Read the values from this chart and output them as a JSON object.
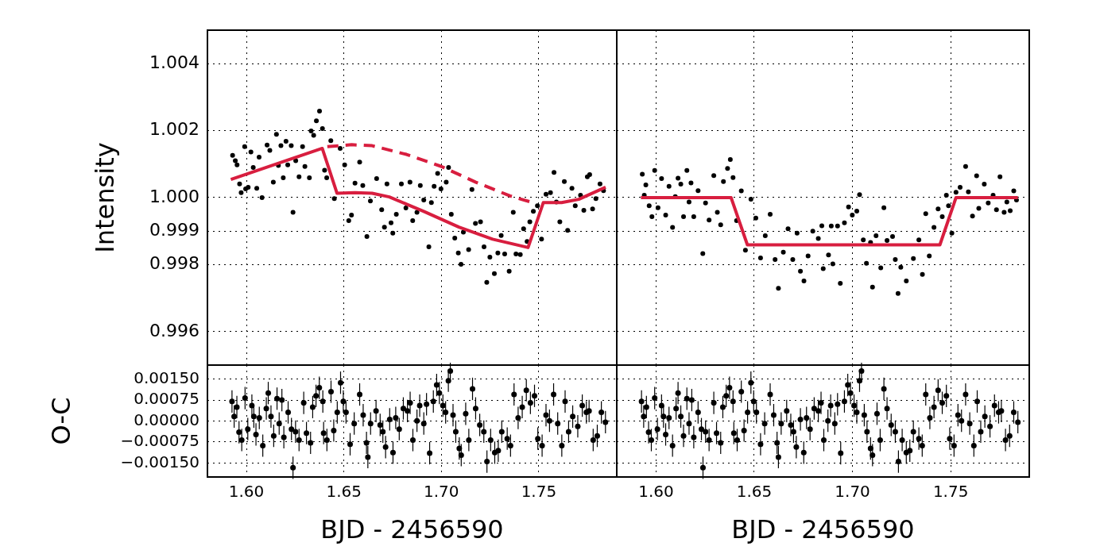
{
  "chart_data": [
    {
      "type": "scatter",
      "ylabel": "Intensity",
      "grid": true,
      "tick_labels": "y",
      "xlim": [
        1.58,
        1.79
      ],
      "xticks": [
        1.6,
        1.65,
        1.7,
        1.75
      ],
      "ylim": [
        0.995,
        1.005
      ],
      "yticks": [
        {
          "value": 0.996,
          "label": "0.996"
        },
        {
          "value": 0.998,
          "label": "0.998"
        },
        {
          "value": 0.999,
          "label": "0.999"
        },
        {
          "value": 1.0,
          "label": "1.000"
        },
        {
          "value": 1.002,
          "label": "1.002"
        },
        {
          "value": 1.004,
          "label": "1.004"
        }
      ],
      "series": [
        {
          "type": "scatter",
          "color": "#000000",
          "marker": "circle",
          "x": [
            1.5929,
            1.5943,
            1.5952,
            1.5965,
            1.5973,
            1.5991,
            1.5996,
            1.6009,
            1.6023,
            1.6035,
            1.6053,
            1.6065,
            1.608,
            1.6106,
            1.612,
            1.6138,
            1.6154,
            1.6164,
            1.6177,
            1.6189,
            1.6203,
            1.6212,
            1.623,
            1.6239,
            1.6253,
            1.627,
            1.6288,
            1.63,
            1.6323,
            1.6332,
            1.6345,
            1.6359,
            1.6375,
            1.639,
            1.6401,
            1.6412,
            1.6433,
            1.6451,
            1.6481,
            1.6504,
            1.6525,
            1.6539,
            1.6557,
            1.6581,
            1.6597,
            1.6618,
            1.6636,
            1.6668,
            1.6694,
            1.6708,
            1.6721,
            1.6742,
            1.6751,
            1.6769,
            1.6795,
            1.6818,
            1.6839,
            1.6853,
            1.6875,
            1.6892,
            1.691,
            1.6936,
            1.6949,
            1.6963,
            1.6981,
            1.6998,
            1.7025,
            1.7037,
            1.7051,
            1.7069,
            1.7087,
            1.7101,
            1.7113,
            1.714,
            1.7157,
            1.7175,
            1.7201,
            1.7219,
            1.7233,
            1.7249,
            1.7272,
            1.729,
            1.7307,
            1.7325,
            1.7348,
            1.7369,
            1.7383,
            1.7405,
            1.7422,
            1.744,
            1.7454,
            1.7472,
            1.7493,
            1.7514,
            1.7537,
            1.756,
            1.7578,
            1.759,
            1.7608,
            1.7631,
            1.7648,
            1.767,
            1.7687,
            1.7714,
            1.7731,
            1.7749,
            1.7761,
            1.7776,
            1.7793,
            1.7814,
            1.7832
          ],
          "values": [
            1.00126,
            1.0011,
            1.00098,
            1.00041,
            1.00015,
            1.00152,
            1.00026,
            1.00031,
            1.00136,
            1.0009,
            1.00028,
            1.00121,
            1.0,
            1.00157,
            1.00141,
            1.00046,
            1.00189,
            1.00096,
            1.00155,
            1.00059,
            1.00168,
            1.00098,
            1.00155,
            0.99956,
            1.0011,
            1.00062,
            1.00152,
            1.00093,
            1.00059,
            1.00199,
            1.00186,
            1.00229,
            1.00258,
            1.00206,
            1.00082,
            1.00059,
            1.0017,
            0.99997,
            1.00147,
            1.00098,
            0.99931,
            0.99948,
            1.00043,
            1.00106,
            1.00036,
            0.99884,
            0.9999,
            1.00057,
            0.99964,
            0.99912,
            1.00041,
            0.99925,
            0.99894,
            0.9995,
            1.00041,
            0.99969,
            1.00046,
            0.99931,
            0.99956,
            1.00036,
            0.99993,
            0.99853,
            0.99985,
            1.00034,
            1.00072,
            1.00026,
            1.00046,
            1.0009,
            0.9995,
            0.99879,
            0.99835,
            0.99801,
            0.99897,
            0.99845,
            1.00024,
            0.99923,
            0.99928,
            0.99853,
            0.99747,
            0.99822,
            0.99773,
            0.99835,
            0.99887,
            0.99832,
            0.9978,
            0.99956,
            0.99832,
            0.9983,
            0.99907,
            0.99869,
            0.99928,
            0.99959,
            0.99976,
            0.99876,
            1.0001,
            1.00015,
            1.00075,
            0.99987,
            0.99928,
            1.00048,
            0.99902,
            1.00028,
            0.99976,
            1.00007,
            0.99962,
            1.00062,
            1.00069,
            0.99966,
            0.99997,
            1.00041,
            1.00021
          ]
        },
        {
          "type": "line",
          "color": "#d81e3f",
          "marker": "none",
          "line_style": "solid",
          "x": [
            1.592,
            1.6389,
            1.6465,
            1.6557,
            1.6645,
            1.6733,
            1.691,
            1.709,
            1.7263,
            1.7445,
            1.7523,
            1.7617,
            1.7705,
            1.7843
          ],
          "values": [
            1.00054,
            1.00147,
            1.00013,
            1.00015,
            1.00013,
            1.00002,
            0.99959,
            0.99912,
            0.99876,
            0.99851,
            0.99985,
            0.99985,
            0.99995,
            1.00031
          ]
        },
        {
          "type": "line",
          "color": "#d81e3f",
          "marker": "none",
          "line_style": "dashed",
          "x": [
            1.6415,
            1.654,
            1.6645,
            1.6821,
            1.7,
            1.7177,
            1.7353,
            1.7459
          ],
          "values": [
            1.00152,
            1.00158,
            1.00155,
            1.00129,
            1.00093,
            1.00046,
            1.00005,
            0.99987
          ]
        }
      ]
    },
    {
      "type": "scatter",
      "grid": true,
      "tick_labels": false,
      "xlim": [
        1.58,
        1.79
      ],
      "xticks": [
        1.6,
        1.65,
        1.7,
        1.75
      ],
      "ylim": [
        0.995,
        1.005
      ],
      "yticks": [
        0.996,
        0.998,
        0.999,
        1.0,
        1.002,
        1.004
      ],
      "series": [
        {
          "type": "scatter",
          "color": "#000000",
          "marker": "circle",
          "x": [
            1.593,
            1.594,
            1.5948,
            1.5965,
            1.5979,
            1.5993,
            1.601,
            1.6028,
            1.6049,
            1.6066,
            1.6084,
            1.6098,
            1.6112,
            1.6126,
            1.614,
            1.6157,
            1.6168,
            1.6178,
            1.6192,
            1.6214,
            1.6238,
            1.6252,
            1.627,
            1.6294,
            1.6312,
            1.6329,
            1.6343,
            1.6364,
            1.6378,
            1.6392,
            1.641,
            1.6434,
            1.6455,
            1.6483,
            1.6508,
            1.6532,
            1.6556,
            1.6581,
            1.6606,
            1.6623,
            1.6648,
            1.6672,
            1.6696,
            1.6718,
            1.6735,
            1.6753,
            1.6774,
            1.6798,
            1.6826,
            1.6844,
            1.6851,
            1.6878,
            1.6892,
            1.69,
            1.6924,
            1.6938,
            1.6959,
            1.698,
            1.6999,
            1.7022,
            1.7036,
            1.7055,
            1.7071,
            1.7092,
            1.7102,
            1.712,
            1.7144,
            1.716,
            1.7176,
            1.7204,
            1.7218,
            1.7232,
            1.7246,
            1.7274,
            1.731,
            1.7338,
            1.7356,
            1.7373,
            1.7391,
            1.7415,
            1.7436,
            1.7457,
            1.7478,
            1.7489,
            1.7506,
            1.7527,
            1.7548,
            1.7576,
            1.759,
            1.7611,
            1.7632,
            1.7643,
            1.7671,
            1.7691,
            1.7716,
            1.7733,
            1.7751,
            1.7772,
            1.7786,
            1.7803,
            1.7821,
            1.7835
          ],
          "values": [
            1.0007,
            1.00007,
            1.00038,
            0.99976,
            0.99943,
            1.00081,
            0.9997,
            1.00057,
            0.99948,
            1.00034,
            0.99911,
            1.00003,
            1.00058,
            1.0004,
            0.99943,
            1.00081,
            0.99987,
            1.00044,
            0.99943,
            1.00021,
            0.99833,
            0.99984,
            0.99933,
            1.00066,
            0.99956,
            0.99919,
            1.00048,
            1.00087,
            1.00114,
            1.0006,
            0.99931,
            1.0002,
            0.99843,
            0.99995,
            0.99939,
            0.9982,
            0.99886,
            0.9995,
            0.99815,
            0.99729,
            0.99837,
            0.99907,
            0.99815,
            0.99894,
            0.9978,
            0.99751,
            0.99826,
            0.999,
            0.99878,
            0.99916,
            0.99788,
            0.99829,
            0.99915,
            0.99802,
            0.99915,
            0.99744,
            0.99925,
            0.99972,
            0.99948,
            0.9996,
            1.00009,
            0.99874,
            0.99804,
            0.99866,
            0.99733,
            0.99886,
            0.9979,
            0.9997,
            0.99872,
            0.99884,
            0.99815,
            0.99714,
            0.99792,
            0.99751,
            0.99818,
            0.99874,
            0.99771,
            0.99952,
            0.99826,
            0.99911,
            0.99966,
            0.99943,
            1.00007,
            0.99976,
            0.99894,
            1.00016,
            1.00031,
            1.00093,
            1.00017,
            0.99945,
            1.00065,
            0.99968,
            1.0004,
            0.99984,
            1.00007,
            0.99964,
            1.00062,
            0.99956,
            0.99987,
            0.99961,
            1.0002,
            0.99993
          ]
        },
        {
          "type": "line",
          "color": "#d81e3f",
          "marker": "none",
          "line_style": "solid",
          "x": [
            1.5923,
            1.6382,
            1.6465,
            1.7445,
            1.7527,
            1.7842
          ],
          "values": [
            1.0,
            1.0,
            0.99859,
            0.99859,
            1.0,
            1.0
          ]
        }
      ]
    },
    {
      "type": "scatter",
      "xlabel": "BJD - 2456590",
      "ylabel": "O-C",
      "grid": true,
      "xlim": [
        1.58,
        1.79
      ],
      "xticks": [
        {
          "value": 1.6,
          "label": "1.60"
        },
        {
          "value": 1.65,
          "label": "1.65"
        },
        {
          "value": 1.7,
          "label": "1.70"
        },
        {
          "value": 1.75,
          "label": "1.75"
        }
      ],
      "ylim": [
        -0.002,
        0.002
      ],
      "yticks": [
        {
          "value": -0.0015,
          "label": "−0.00150"
        },
        {
          "value": -0.00075,
          "label": "−0.00075"
        },
        {
          "value": 0,
          "label": "0.00000"
        },
        {
          "value": 0.00075,
          "label": "0.00075"
        },
        {
          "value": 0.0015,
          "label": "0.00150"
        }
      ],
      "series": [
        {
          "type": "scatter",
          "color": "#000000",
          "marker": "circle",
          "x": [
            1.5926,
            1.5937,
            1.5951,
            1.5962,
            1.5976,
            1.5993,
            1.6007,
            1.6028,
            1.6038,
            1.6049,
            1.6066,
            1.6084,
            1.6102,
            1.6112,
            1.6126,
            1.614,
            1.6157,
            1.6168,
            1.6182,
            1.6192,
            1.6214,
            1.6231,
            1.6239,
            1.6252,
            1.627,
            1.6294,
            1.6308,
            1.6329,
            1.634,
            1.6357,
            1.6374,
            1.6392,
            1.6396,
            1.6413,
            1.6434,
            1.6448,
            1.6466,
            1.6483,
            1.6497,
            1.6511,
            1.6532,
            1.6553,
            1.6581,
            1.6599,
            1.6616,
            1.6623,
            1.6637,
            1.6665,
            1.6686,
            1.67,
            1.6714,
            1.6735,
            1.6752,
            1.6766,
            1.6784,
            1.6805,
            1.6826,
            1.684,
            1.6854,
            1.6875,
            1.6889,
            1.691,
            1.6924,
            1.694,
            1.6959,
            1.6976,
            1.699,
            1.7008,
            1.7022,
            1.7036,
            1.7046,
            1.706,
            1.7074,
            1.7092,
            1.7102,
            1.7125,
            1.7141,
            1.716,
            1.7176,
            1.7197,
            1.7218,
            1.7234,
            1.7253,
            1.7274,
            1.7292,
            1.731,
            1.7338,
            1.7355,
            1.7373,
            1.7394,
            1.7415,
            1.7436,
            1.7457,
            1.7478,
            1.7495,
            1.7517,
            1.7537,
            1.7555,
            1.7576,
            1.7597,
            1.7618,
            1.7635,
            1.7653,
            1.7674,
            1.77,
            1.7723,
            1.7744,
            1.7758,
            1.7779,
            1.78,
            1.7821,
            1.7842
          ],
          "values": [
            0.0007,
            0.00016,
            0.0005,
            -0.0004,
            -0.00068,
            0.00082,
            -0.00029,
            0.00055,
            0.00016,
            -0.00048,
            0.00011,
            -0.00088,
            0.00045,
            0.001,
            0.00016,
            -0.00053,
            0.0008,
            -9e-05,
            0.00075,
            -0.00058,
            0.00031,
            -0.00029,
            -0.00167,
            -0.00038,
            -0.00068,
            0.00065,
            -0.00043,
            -0.00078,
            0.0005,
            0.0009,
            0.00119,
            0.0007,
            -0.00043,
            -0.00068,
            0.00105,
            -0.00034,
            0.00031,
            0.00137,
            0.0007,
            0.00031,
            -0.00083,
            -9e-05,
            0.00095,
            0.00021,
            -0.00078,
            -0.00129,
            -9e-05,
            0.00036,
            -0.00014,
            -0.00038,
            -0.00093,
            6e-05,
            -0.00113,
            0.00011,
            -0.00029,
            0.00045,
            0.00036,
            0.00065,
            -0.00068,
            1e-05,
            0.00055,
            -9e-05,
            0.0006,
            -0.00115,
            0.0007,
            0.00129,
            0.001,
            0.00055,
            0.00031,
            0.00144,
            0.00179,
            0.00021,
            -0.00038,
            -0.00098,
            -0.00122,
            0.00026,
            -0.00068,
            0.00115,
            0.00045,
            -0.00014,
            -0.00038,
            -0.00145,
            -0.00068,
            -0.00113,
            -0.00106,
            -0.00038,
            -0.00063,
            -0.00088,
            0.00095,
            0.00011,
            0.0005,
            0.0011,
            0.00065,
            0.0009,
            -0.00063,
            -0.00088,
            0.00021,
            1e-05,
            0.00095,
            -9e-05,
            -0.00088,
            0.0007,
            -0.00038,
            0.00016,
            -0.00019,
            0.00055,
            0.00031,
            0.00036,
            -0.00068,
            -0.00053,
            0.00031,
            -4e-05
          ],
          "errors": [
            0.0004,
            0.0004,
            0.0004,
            0.0004,
            0.0004,
            0.0004,
            0.0004,
            0.0004,
            0.0004,
            0.0004,
            0.0004,
            0.0004,
            0.0004,
            0.0004,
            0.0004,
            0.0004,
            0.0004,
            0.0004,
            0.0004,
            0.0004,
            0.0004,
            0.0004,
            0.0004,
            0.0004,
            0.0004,
            0.0004,
            0.0004,
            0.0004,
            0.0004,
            0.0004,
            0.0004,
            0.0004,
            0.0004,
            0.0004,
            0.0004,
            0.0004,
            0.0004,
            0.0004,
            0.0004,
            0.0004,
            0.0004,
            0.0004,
            0.0004,
            0.0004,
            0.0004,
            0.0004,
            0.0004,
            0.0004,
            0.0004,
            0.0004,
            0.0004,
            0.0004,
            0.0004,
            0.0004,
            0.0004,
            0.0004,
            0.0004,
            0.0004,
            0.0004,
            0.0004,
            0.0004,
            0.0004,
            0.0004,
            0.0004,
            0.0004,
            0.0004,
            0.0004,
            0.0004,
            0.0004,
            0.0004,
            0.0004,
            0.0004,
            0.0004,
            0.0004,
            0.0004,
            0.0004,
            0.0004,
            0.0004,
            0.0004,
            0.0004,
            0.0004,
            0.0004,
            0.0004,
            0.0004,
            0.0004,
            0.0004,
            0.0004,
            0.0004,
            0.0004,
            0.0004,
            0.0004,
            0.0004,
            0.0004,
            0.0004,
            0.0004,
            0.0004,
            0.0004,
            0.0004,
            0.0004,
            0.0004,
            0.0004,
            0.0004,
            0.0004,
            0.0004,
            0.0004,
            0.0004,
            0.0004,
            0.0004,
            0.0004,
            0.0004,
            0.0004,
            0.0004
          ]
        }
      ]
    },
    {
      "type": "scatter",
      "xlabel": "BJD - 2456590",
      "grid": true,
      "tick_labels": "x",
      "xlim": [
        1.58,
        1.79
      ],
      "xticks": [
        {
          "value": 1.6,
          "label": "1.60"
        },
        {
          "value": 1.65,
          "label": "1.65"
        },
        {
          "value": 1.7,
          "label": "1.70"
        },
        {
          "value": 1.75,
          "label": "1.75"
        }
      ],
      "ylim": [
        -0.002,
        0.002
      ],
      "yticks": [
        -0.0015,
        -0.00075,
        0,
        0.00075,
        0.0015
      ],
      "series": [
        {
          "type": "scatter",
          "color": "#000000",
          "marker": "circle",
          "x": [
            1.5926,
            1.5937,
            1.5951,
            1.5962,
            1.5976,
            1.5993,
            1.6007,
            1.6028,
            1.6038,
            1.6049,
            1.6066,
            1.6084,
            1.6102,
            1.6112,
            1.6126,
            1.614,
            1.6157,
            1.6168,
            1.6182,
            1.6192,
            1.6214,
            1.6231,
            1.6239,
            1.6252,
            1.627,
            1.6294,
            1.6308,
            1.6329,
            1.634,
            1.6357,
            1.6374,
            1.6392,
            1.6396,
            1.6413,
            1.6434,
            1.6448,
            1.6466,
            1.6483,
            1.6497,
            1.6511,
            1.6532,
            1.6553,
            1.6581,
            1.6599,
            1.6616,
            1.6623,
            1.6637,
            1.6665,
            1.6686,
            1.67,
            1.6714,
            1.6735,
            1.6752,
            1.6766,
            1.6784,
            1.6805,
            1.6826,
            1.684,
            1.6854,
            1.6875,
            1.6889,
            1.691,
            1.6924,
            1.694,
            1.6959,
            1.6976,
            1.699,
            1.7008,
            1.7022,
            1.7036,
            1.7046,
            1.706,
            1.7074,
            1.7092,
            1.7102,
            1.7125,
            1.7141,
            1.716,
            1.7176,
            1.7197,
            1.7218,
            1.7234,
            1.7253,
            1.7274,
            1.7292,
            1.731,
            1.7338,
            1.7355,
            1.7373,
            1.7394,
            1.7415,
            1.7436,
            1.7457,
            1.7478,
            1.7495,
            1.7517,
            1.7537,
            1.7555,
            1.7576,
            1.7597,
            1.7618,
            1.7635,
            1.7653,
            1.7674,
            1.77,
            1.7723,
            1.7744,
            1.7758,
            1.7779,
            1.78,
            1.7821,
            1.7842
          ],
          "values": [
            0.0007,
            0.00016,
            0.0005,
            -0.0004,
            -0.00068,
            0.00082,
            -0.00029,
            0.00055,
            0.00016,
            -0.00048,
            0.00011,
            -0.00088,
            0.00045,
            0.001,
            0.00016,
            -0.00053,
            0.0008,
            -9e-05,
            0.00075,
            -0.00058,
            0.00031,
            -0.00029,
            -0.00167,
            -0.00038,
            -0.00068,
            0.00065,
            -0.00043,
            -0.00078,
            0.0005,
            0.0009,
            0.00119,
            0.0007,
            -0.00043,
            -0.00068,
            0.00105,
            -0.00034,
            0.00031,
            0.00137,
            0.0007,
            0.00031,
            -0.00083,
            -9e-05,
            0.00095,
            0.00021,
            -0.00078,
            -0.00129,
            -9e-05,
            0.00036,
            -0.00014,
            -0.00038,
            -0.00093,
            6e-05,
            -0.00113,
            0.00011,
            -0.00029,
            0.00045,
            0.00036,
            0.00065,
            -0.00068,
            1e-05,
            0.00055,
            -9e-05,
            0.0006,
            -0.00115,
            0.0007,
            0.00129,
            0.001,
            0.00055,
            0.00031,
            0.00144,
            0.00179,
            0.00021,
            -0.00038,
            -0.00098,
            -0.00122,
            0.00026,
            -0.00068,
            0.00115,
            0.00045,
            -0.00014,
            -0.00038,
            -0.00145,
            -0.00068,
            -0.00113,
            -0.00106,
            -0.00038,
            -0.00063,
            -0.00088,
            0.00095,
            0.00011,
            0.0005,
            0.0011,
            0.00065,
            0.0009,
            -0.00063,
            -0.00088,
            0.00021,
            1e-05,
            0.00095,
            -9e-05,
            -0.00088,
            0.0007,
            -0.00038,
            0.00016,
            -0.00019,
            0.00055,
            0.00031,
            0.00036,
            -0.00068,
            -0.00053,
            0.00031,
            -4e-05
          ],
          "errors": [
            0.0004,
            0.0004,
            0.0004,
            0.0004,
            0.0004,
            0.0004,
            0.0004,
            0.0004,
            0.0004,
            0.0004,
            0.0004,
            0.0004,
            0.0004,
            0.0004,
            0.0004,
            0.0004,
            0.0004,
            0.0004,
            0.0004,
            0.0004,
            0.0004,
            0.0004,
            0.0004,
            0.0004,
            0.0004,
            0.0004,
            0.0004,
            0.0004,
            0.0004,
            0.0004,
            0.0004,
            0.0004,
            0.0004,
            0.0004,
            0.0004,
            0.0004,
            0.0004,
            0.0004,
            0.0004,
            0.0004,
            0.0004,
            0.0004,
            0.0004,
            0.0004,
            0.0004,
            0.0004,
            0.0004,
            0.0004,
            0.0004,
            0.0004,
            0.0004,
            0.0004,
            0.0004,
            0.0004,
            0.0004,
            0.0004,
            0.0004,
            0.0004,
            0.0004,
            0.0004,
            0.0004,
            0.0004,
            0.0004,
            0.0004,
            0.0004,
            0.0004,
            0.0004,
            0.0004,
            0.0004,
            0.0004,
            0.0004,
            0.0004,
            0.0004,
            0.0004,
            0.0004,
            0.0004,
            0.0004,
            0.0004,
            0.0004,
            0.0004,
            0.0004,
            0.0004,
            0.0004,
            0.0004,
            0.0004,
            0.0004,
            0.0004,
            0.0004,
            0.0004,
            0.0004,
            0.0004,
            0.0004,
            0.0004,
            0.0004,
            0.0004,
            0.0004,
            0.0004,
            0.0004,
            0.0004,
            0.0004,
            0.0004,
            0.0004,
            0.0004,
            0.0004,
            0.0004,
            0.0004,
            0.0004,
            0.0004,
            0.0004,
            0.0004,
            0.0004,
            0.0004
          ]
        }
      ]
    }
  ]
}
